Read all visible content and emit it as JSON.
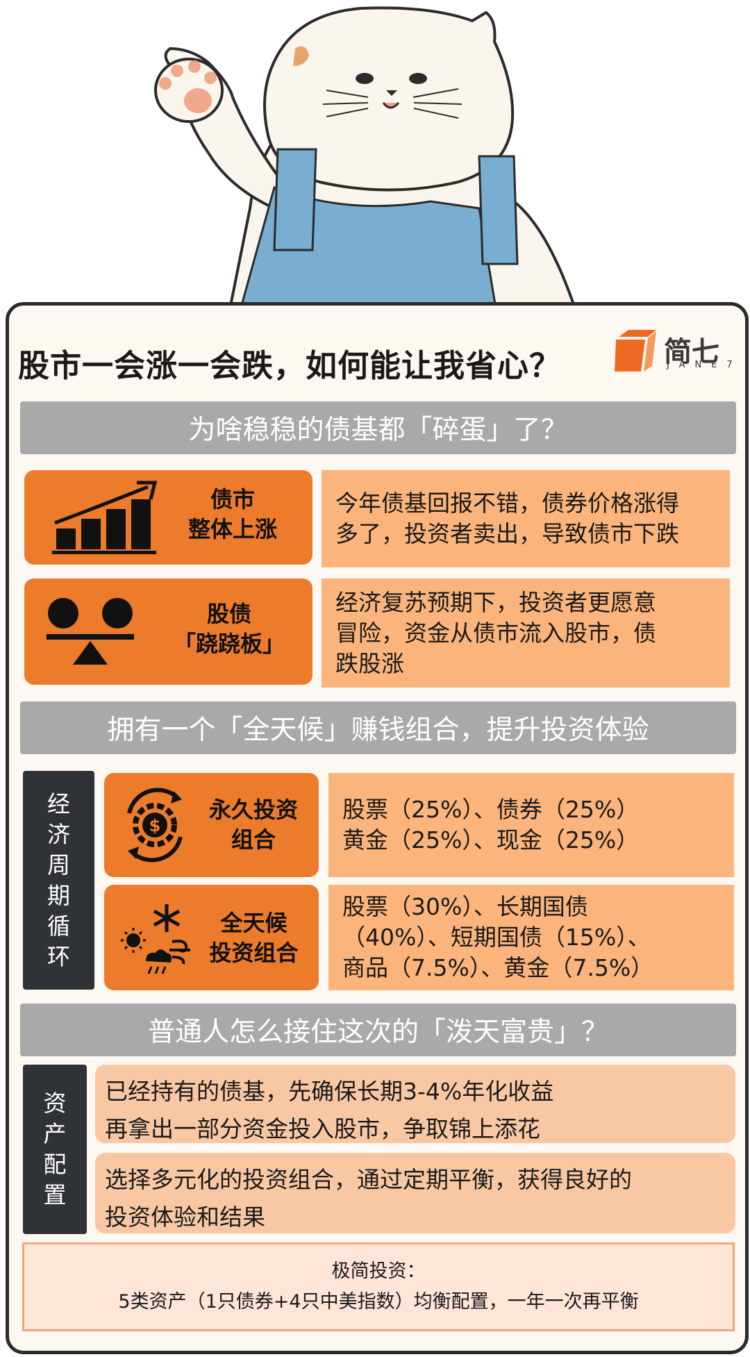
{
  "header": {
    "title": "股市一会涨一会跌，如何能让我省心？",
    "logo_name": "简七",
    "logo_sub": "JANE7"
  },
  "section1": {
    "heading": "为啥稳稳的债基都「碎蛋」了？",
    "rows": [
      {
        "icon": "bar-growth-icon",
        "label": "债市\n整体上涨",
        "text": "今年债基回报不错，债券价格涨得\n多了，投资者卖出，导致债市下跌"
      },
      {
        "icon": "seesaw-icon",
        "label": "股债\n「跷跷板」",
        "text": "经济复苏预期下，投资者更愿意\n冒险，资金从债市流入股市，债\n跌股涨"
      }
    ]
  },
  "section2": {
    "heading": "拥有一个「全天候」赚钱组合，提升投资体验",
    "side_label": "经济周期循环",
    "rows": [
      {
        "icon": "dollar-cycle-icon",
        "label": "永久投资\n组合",
        "text": "股票（25%）、债券（25%）\n黄金（25%）、现金（25%）"
      },
      {
        "icon": "weather-icon",
        "label": "全天候\n投资组合",
        "text": "股票（30%）、长期国债\n（40%）、短期国债（15%）、\n商品（7.5%）、黄金（7.5%）"
      }
    ]
  },
  "section3": {
    "heading": "普通人怎么接住这次的「泼天富贵」？",
    "side_label": "资产配置",
    "items": [
      "已经持有的债基，先确保长期3-4%年化收益\n再拿出一部分资金投入股市，争取锦上添花",
      "选择多元化的投资组合，通过定期平衡，获得良好的\n投资体验和结果"
    ]
  },
  "footer": {
    "line1": "极简投资：",
    "line2": "5类资产（1只债券+4只中美指数）均衡配置，一年一次再平衡"
  },
  "colors": {
    "orange": "#ec7b2c",
    "peach": "#fbb47c",
    "gray_bar": "#a9a9a9",
    "dark_label": "#2f3237",
    "light_box": "#f8c8a4",
    "footer_bg": "#fde5d7"
  }
}
